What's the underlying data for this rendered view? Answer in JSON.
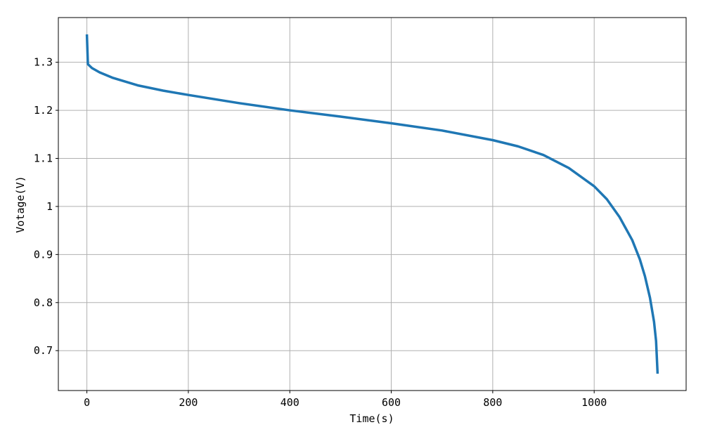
{
  "chart_data": {
    "type": "line",
    "xlabel": "Time(s)",
    "ylabel": "Votage(V)",
    "x": [
      0,
      2,
      10,
      25,
      50,
      100,
      150,
      200,
      300,
      400,
      500,
      600,
      700,
      800,
      850,
      900,
      950,
      1000,
      1025,
      1050,
      1075,
      1090,
      1100,
      1110,
      1118,
      1122,
      1125
    ],
    "series": [
      {
        "color": "#1f77b4",
        "values": [
          1.358,
          1.296,
          1.288,
          1.279,
          1.268,
          1.252,
          1.241,
          1.232,
          1.215,
          1.2,
          1.187,
          1.173,
          1.158,
          1.138,
          1.125,
          1.107,
          1.08,
          1.042,
          1.015,
          0.978,
          0.93,
          0.89,
          0.855,
          0.81,
          0.76,
          0.72,
          0.652
        ]
      }
    ],
    "xlim": [
      -56.25,
      1181.25
    ],
    "xticks": [
      0,
      200,
      400,
      600,
      800,
      1000
    ],
    "ylim": [
      0.617,
      1.393
    ],
    "yticks": [
      0.7,
      0.8,
      0.9,
      1.0,
      1.1,
      1.2,
      1.3
    ],
    "grid": true
  }
}
